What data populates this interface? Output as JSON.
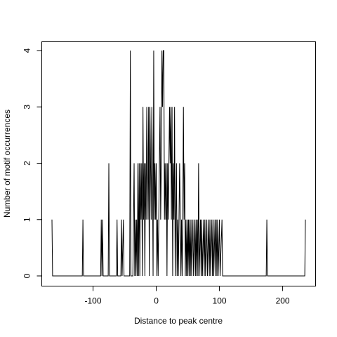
{
  "chart_data": {
    "type": "line",
    "title": "",
    "xlabel": "Distance to peak centre",
    "ylabel": "Number of motif occurrences",
    "xlim": [
      -170,
      240
    ],
    "ylim": [
      0,
      4
    ],
    "x_ticks": [
      -100,
      0,
      100,
      200
    ],
    "x_tick_labels": [
      "-100",
      "0",
      "100",
      "200"
    ],
    "y_ticks": [
      0,
      1,
      2,
      3,
      4
    ],
    "y_tick_labels": [
      "0",
      "1",
      "2",
      "3",
      "4"
    ],
    "grid": false,
    "series": [
      {
        "color": "#000000",
        "points": [
          [
            -165,
            1
          ],
          [
            -164,
            0
          ],
          [
            -117,
            0
          ],
          [
            -116,
            1
          ],
          [
            -115,
            0
          ],
          [
            -88,
            0
          ],
          [
            -87,
            1
          ],
          [
            -86,
            0
          ],
          [
            -85,
            1
          ],
          [
            -84,
            0
          ],
          [
            -76,
            0
          ],
          [
            -75,
            2
          ],
          [
            -74,
            0
          ],
          [
            -63,
            0
          ],
          [
            -62,
            1
          ],
          [
            -61,
            0
          ],
          [
            -56,
            0
          ],
          [
            -55,
            1
          ],
          [
            -54,
            0
          ],
          [
            -52,
            1
          ],
          [
            -51,
            0
          ],
          [
            -42,
            0
          ],
          [
            -41,
            4
          ],
          [
            -40,
            0
          ],
          [
            -37,
            0
          ],
          [
            -36,
            1
          ],
          [
            -35,
            2
          ],
          [
            -34,
            0
          ],
          [
            -33,
            1
          ],
          [
            -32,
            0
          ],
          [
            -31,
            1
          ],
          [
            -30,
            0
          ],
          [
            -29,
            2
          ],
          [
            -28,
            0
          ],
          [
            -27,
            2
          ],
          [
            -26,
            0
          ],
          [
            -25,
            2
          ],
          [
            -24,
            1
          ],
          [
            -23,
            2
          ],
          [
            -22,
            0
          ],
          [
            -21,
            3
          ],
          [
            -20,
            1
          ],
          [
            -19,
            2
          ],
          [
            -18,
            0
          ],
          [
            -17,
            2
          ],
          [
            -16,
            1
          ],
          [
            -15,
            3
          ],
          [
            -14,
            2
          ],
          [
            -13,
            1
          ],
          [
            -12,
            3
          ],
          [
            -11,
            0
          ],
          [
            -10,
            3
          ],
          [
            -9,
            2
          ],
          [
            -8,
            1
          ],
          [
            -7,
            3
          ],
          [
            -6,
            2
          ],
          [
            -5,
            0
          ],
          [
            -4,
            4
          ],
          [
            -3,
            1
          ],
          [
            -2,
            2
          ],
          [
            -1,
            1
          ],
          [
            0,
            2
          ],
          [
            1,
            0
          ],
          [
            2,
            1
          ],
          [
            3,
            0
          ],
          [
            4,
            1
          ],
          [
            5,
            2
          ],
          [
            6,
            3
          ],
          [
            7,
            1
          ],
          [
            8,
            2
          ],
          [
            9,
            4
          ],
          [
            10,
            3
          ],
          [
            11,
            4
          ],
          [
            12,
            4
          ],
          [
            13,
            1
          ],
          [
            14,
            2
          ],
          [
            15,
            1
          ],
          [
            16,
            2
          ],
          [
            17,
            0
          ],
          [
            18,
            2
          ],
          [
            19,
            1
          ],
          [
            20,
            2
          ],
          [
            21,
            3
          ],
          [
            22,
            2
          ],
          [
            23,
            3
          ],
          [
            24,
            1
          ],
          [
            25,
            3
          ],
          [
            26,
            0
          ],
          [
            27,
            2
          ],
          [
            28,
            1
          ],
          [
            29,
            3
          ],
          [
            30,
            0
          ],
          [
            31,
            1
          ],
          [
            32,
            2
          ],
          [
            33,
            0
          ],
          [
            34,
            1
          ],
          [
            35,
            0
          ],
          [
            36,
            1
          ],
          [
            37,
            2
          ],
          [
            38,
            1
          ],
          [
            39,
            0
          ],
          [
            40,
            1
          ],
          [
            41,
            0
          ],
          [
            42,
            1
          ],
          [
            43,
            3
          ],
          [
            44,
            1
          ],
          [
            45,
            2
          ],
          [
            46,
            0
          ],
          [
            47,
            1
          ],
          [
            48,
            0
          ],
          [
            49,
            1
          ],
          [
            50,
            0
          ],
          [
            51,
            1
          ],
          [
            52,
            0
          ],
          [
            53,
            1
          ],
          [
            54,
            0
          ],
          [
            55,
            1
          ],
          [
            56,
            0
          ],
          [
            58,
            1
          ],
          [
            59,
            0
          ],
          [
            61,
            1
          ],
          [
            62,
            0
          ],
          [
            63,
            1
          ],
          [
            64,
            0
          ],
          [
            65,
            1
          ],
          [
            66,
            0
          ],
          [
            67,
            2
          ],
          [
            68,
            0
          ],
          [
            70,
            1
          ],
          [
            71,
            0
          ],
          [
            72,
            1
          ],
          [
            73,
            0
          ],
          [
            75,
            1
          ],
          [
            76,
            0
          ],
          [
            77,
            1
          ],
          [
            78,
            0
          ],
          [
            80,
            1
          ],
          [
            81,
            0
          ],
          [
            83,
            1
          ],
          [
            84,
            0
          ],
          [
            85,
            1
          ],
          [
            86,
            0
          ],
          [
            88,
            1
          ],
          [
            89,
            0
          ],
          [
            90,
            1
          ],
          [
            91,
            0
          ],
          [
            93,
            1
          ],
          [
            94,
            0
          ],
          [
            95,
            1
          ],
          [
            96,
            0
          ],
          [
            97,
            1
          ],
          [
            98,
            0
          ],
          [
            100,
            1
          ],
          [
            101,
            0
          ],
          [
            104,
            1
          ],
          [
            105,
            0
          ],
          [
            174,
            0
          ],
          [
            175,
            1
          ],
          [
            176,
            0
          ],
          [
            235,
            0
          ],
          [
            236,
            1
          ]
        ]
      }
    ]
  }
}
